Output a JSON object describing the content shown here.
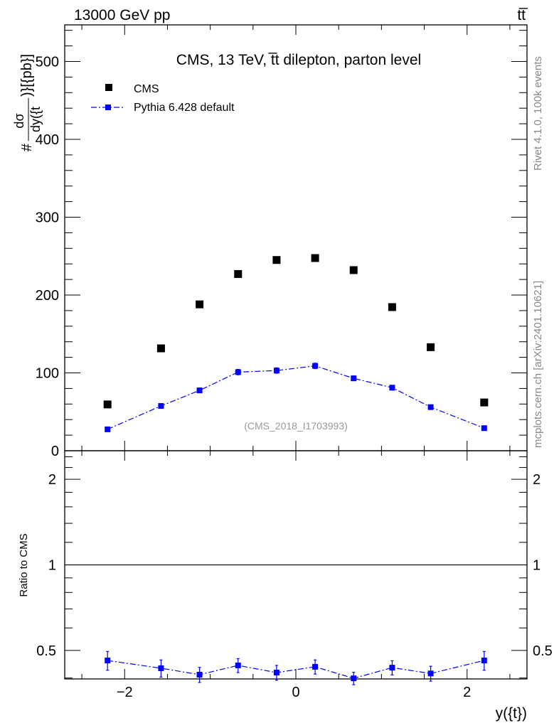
{
  "chart_data": [
    {
      "type": "scatter",
      "panel": "main",
      "title": "CMS, 13 TeV, t̅t dilepton, parton level",
      "header_left": "13000 GeV pp",
      "header_right": "tt̅",
      "ylabel": "#dσ/dy({t})}[{pb}]",
      "ylabel_num": "dσ",
      "ylabel_den": "dy({t",
      "ylabel_prefix": "#",
      "ylabel_suffix": ")}[{pb}]",
      "xlim": [
        -2.7,
        2.7
      ],
      "ylim": [
        0,
        547
      ],
      "yticks": [
        0,
        100,
        200,
        300,
        400,
        500
      ],
      "ytick_labels": [
        "0",
        "100",
        "200",
        "300",
        "400",
        "500"
      ],
      "x": [
        -2.2,
        -1.575,
        -1.125,
        -0.675,
        -0.225,
        0.225,
        0.675,
        1.125,
        1.575,
        2.2
      ],
      "series": [
        {
          "name": "CMS",
          "color": "#000000",
          "values": [
            59.5,
            131.5,
            188,
            227,
            245,
            247.5,
            232,
            184.5,
            133,
            62
          ],
          "errors": [
            1,
            1.5,
            2,
            2,
            2,
            2,
            2,
            2,
            1.5,
            1
          ]
        },
        {
          "name": "Pythia 6.428 default",
          "color": "#0000ff",
          "values": [
            27.5,
            57.5,
            77.5,
            101,
            103,
            109,
            93,
            81,
            56,
            29
          ],
          "errors": [
            1.5,
            2.5,
            3,
            3.5,
            3.5,
            3.5,
            3,
            3,
            2.5,
            1.5
          ]
        }
      ],
      "annotation": "(CMS_2018_I1703993)",
      "side_text_top": "Rivet 4.1.0,  100k events",
      "side_text_bottom": "mcplots.cern.ch [arXiv:2401.10621]",
      "legend_placement": "top-left"
    },
    {
      "type": "scatter",
      "panel": "ratio",
      "ylabel": "Ratio to CMS",
      "xlabel": "y({t})",
      "yscale": "log",
      "xlim": [
        -2.7,
        2.7
      ],
      "ylim": [
        0.397,
        2.52
      ],
      "xticks": [
        -2,
        0,
        2
      ],
      "xtick_labels": [
        "−2",
        "0",
        "2"
      ],
      "yticks": [
        0.5,
        1,
        2
      ],
      "ytick_labels": [
        "0.5",
        "1",
        "2"
      ],
      "x": [
        -2.2,
        -1.575,
        -1.125,
        -0.675,
        -0.225,
        0.225,
        0.675,
        1.125,
        1.575,
        2.2
      ],
      "series": [
        {
          "name": "Pythia 6.428 default",
          "color": "#0000ff",
          "values": [
            0.461,
            0.433,
            0.411,
            0.443,
            0.418,
            0.438,
            0.399,
            0.435,
            0.415,
            0.461
          ],
          "errors": [
            0.035,
            0.03,
            0.025,
            0.025,
            0.025,
            0.025,
            0.02,
            0.025,
            0.025,
            0.035
          ]
        }
      ]
    }
  ]
}
